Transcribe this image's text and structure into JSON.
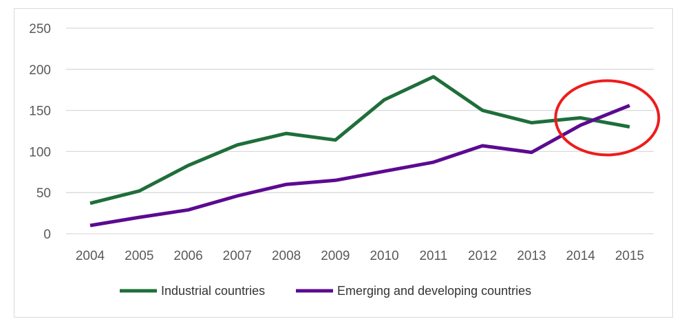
{
  "chart_data": {
    "type": "line",
    "title": "",
    "xlabel": "",
    "ylabel": "",
    "ylim": [
      0,
      250
    ],
    "yticks": [
      0,
      50,
      100,
      150,
      200,
      250
    ],
    "categories": [
      "2004",
      "2005",
      "2006",
      "2007",
      "2008",
      "2009",
      "2010",
      "2011",
      "2012",
      "2013",
      "2014",
      "2015"
    ],
    "series": [
      {
        "name": "Industrial countries",
        "color": "#1f6e3a",
        "values": [
          37,
          52,
          83,
          108,
          122,
          114,
          163,
          191,
          150,
          135,
          141,
          130
        ]
      },
      {
        "name": "Emerging and developing countries",
        "color": "#5b0a91",
        "values": [
          10,
          20,
          29,
          46,
          60,
          65,
          76,
          87,
          107,
          99,
          132,
          156
        ]
      }
    ],
    "grid": true,
    "legend_position": "bottom",
    "annotation": {
      "shape": "ellipse",
      "color": "#ee1c1c",
      "around_categories": [
        "2014",
        "2015"
      ]
    }
  }
}
